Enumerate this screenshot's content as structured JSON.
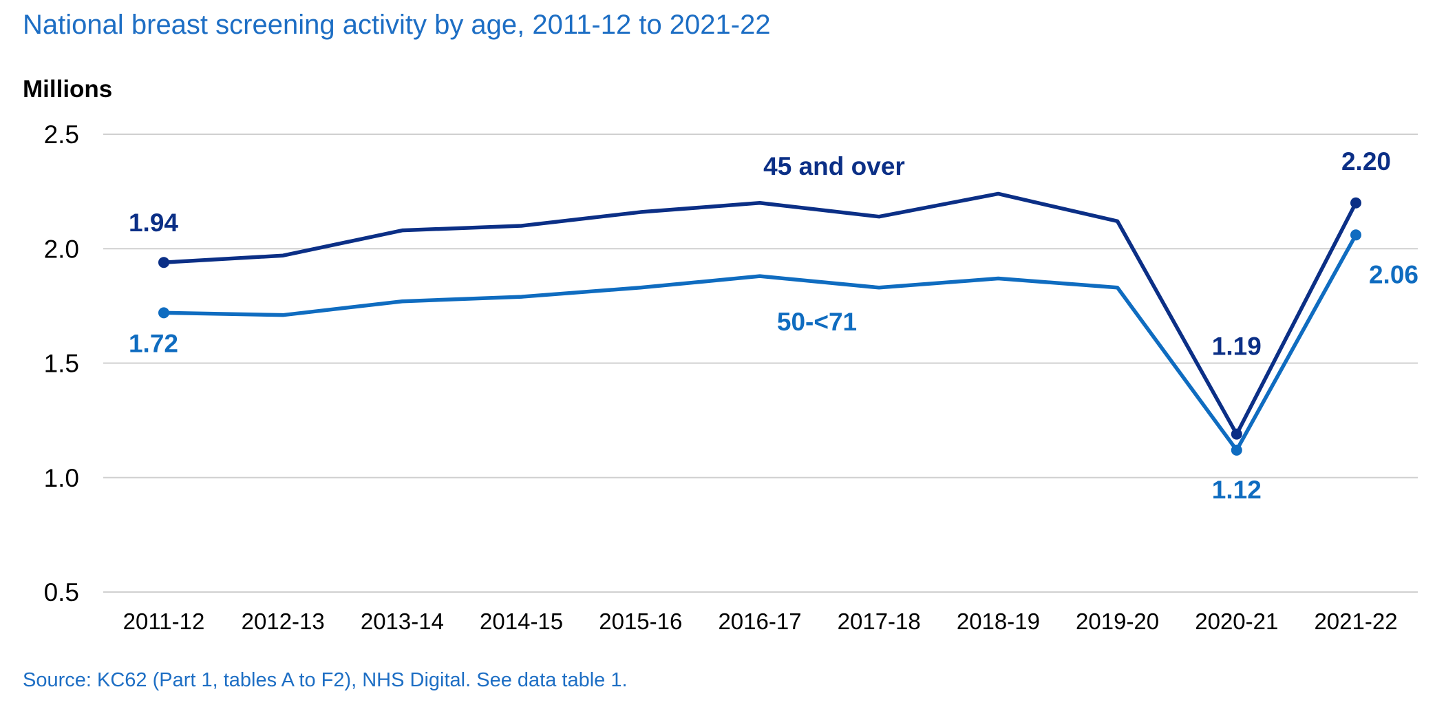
{
  "chart_data": {
    "type": "line",
    "title": "National breast screening activity by age, 2011-12 to 2021-22",
    "ylabel": "Millions",
    "ylim": [
      0.5,
      2.5
    ],
    "yticks": [
      "2.5",
      "2.0",
      "1.5",
      "1.0",
      "0.5"
    ],
    "grid": true,
    "categories": [
      "2011-12",
      "2012-13",
      "2013-14",
      "2014-15",
      "2015-16",
      "2016-17",
      "2017-18",
      "2018-19",
      "2019-20",
      "2020-21",
      "2021-22"
    ],
    "series": [
      {
        "name": "45 and over",
        "color": "#0b2f86",
        "values": [
          1.94,
          1.97,
          2.08,
          2.1,
          2.16,
          2.2,
          2.14,
          2.24,
          2.12,
          1.19,
          2.2
        ],
        "point_labels": [
          {
            "index": 0,
            "text": "1.94"
          },
          {
            "index": 9,
            "text": "1.19"
          },
          {
            "index": 10,
            "text": "2.20"
          }
        ]
      },
      {
        "name": "50-<71",
        "color": "#0f6cc0",
        "values": [
          1.72,
          1.71,
          1.77,
          1.79,
          1.83,
          1.88,
          1.83,
          1.87,
          1.83,
          1.12,
          2.06
        ],
        "point_labels": [
          {
            "index": 0,
            "text": "1.72"
          },
          {
            "index": 9,
            "text": "1.12"
          },
          {
            "index": 10,
            "text": "2.06"
          }
        ]
      }
    ],
    "source": "Source: KC62 (Part 1, tables A to F2), NHS Digital. See data table 1."
  }
}
